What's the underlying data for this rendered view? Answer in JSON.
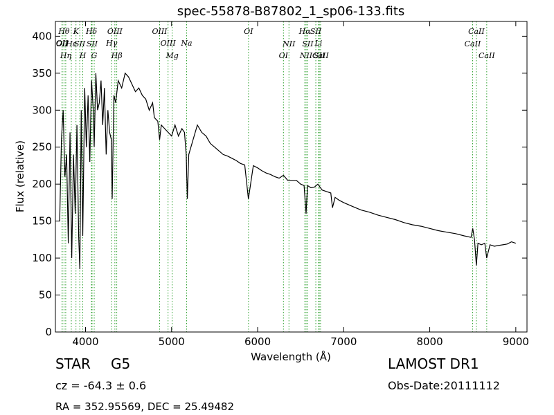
{
  "chart_data": {
    "type": "line",
    "title": "spec-55878-B87802_1_sp06-133.fits",
    "xlabel": "Wavelength (Å)",
    "ylabel": "Flux (relative)",
    "xlim": [
      3650,
      9130
    ],
    "ylim": [
      0,
      420
    ],
    "xticks": [
      4000,
      5000,
      6000,
      7000,
      8000,
      9000
    ],
    "yticks": [
      0,
      50,
      100,
      150,
      200,
      250,
      300,
      350,
      400
    ],
    "grid": false,
    "line_color": "#000000",
    "marker_color": "#2ca02c",
    "series": [
      {
        "x": [
          3700,
          3720,
          3740,
          3760,
          3780,
          3800,
          3820,
          3840,
          3860,
          3880,
          3900,
          3920,
          3934,
          3950,
          3968,
          3990,
          4010,
          4030,
          4050,
          4070,
          4090,
          4101,
          4120,
          4140,
          4160,
          4180,
          4200,
          4220,
          4240,
          4260,
          4280,
          4300,
          4310,
          4330,
          4350,
          4380,
          4420,
          4460,
          4500,
          4540,
          4580,
          4620,
          4660,
          4700,
          4740,
          4780,
          4800,
          4840,
          4861,
          4880,
          4920,
          4960,
          5000,
          5040,
          5080,
          5120,
          5150,
          5170,
          5183,
          5200,
          5250,
          5300,
          5350,
          5400,
          5450,
          5500,
          5550,
          5600,
          5650,
          5700,
          5750,
          5800,
          5850,
          5893,
          5950,
          6000,
          6050,
          6100,
          6150,
          6200,
          6250,
          6300,
          6350,
          6400,
          6450,
          6500,
          6540,
          6563,
          6580,
          6620,
          6660,
          6700,
          6750,
          6800,
          6850,
          6870,
          6900,
          6950,
          7000,
          7100,
          7200,
          7300,
          7400,
          7500,
          7600,
          7700,
          7800,
          7900,
          8000,
          8100,
          8200,
          8300,
          8400,
          8480,
          8500,
          8520,
          8542,
          8560,
          8600,
          8640,
          8662,
          8700,
          8750,
          8800,
          8850,
          8900,
          8950,
          9000
        ],
        "y": [
          150,
          260,
          300,
          210,
          240,
          120,
          270,
          100,
          240,
          160,
          280,
          130,
          85,
          300,
          130,
          330,
          250,
          320,
          230,
          340,
          300,
          250,
          350,
          300,
          310,
          340,
          280,
          330,
          240,
          300,
          270,
          260,
          180,
          320,
          310,
          340,
          330,
          350,
          345,
          335,
          325,
          330,
          320,
          315,
          300,
          310,
          290,
          285,
          260,
          280,
          275,
          270,
          265,
          280,
          265,
          275,
          270,
          240,
          180,
          240,
          260,
          280,
          270,
          265,
          255,
          250,
          245,
          240,
          238,
          235,
          232,
          228,
          226,
          180,
          225,
          222,
          218,
          215,
          213,
          210,
          208,
          212,
          205,
          205,
          205,
          200,
          198,
          160,
          198,
          195,
          196,
          200,
          192,
          190,
          188,
          168,
          182,
          178,
          175,
          170,
          165,
          162,
          158,
          155,
          152,
          148,
          145,
          143,
          140,
          137,
          135,
          133,
          130,
          128,
          140,
          125,
          90,
          120,
          118,
          120,
          100,
          118,
          116,
          117,
          118,
          119,
          122,
          120
        ]
      }
    ],
    "lines": [
      {
        "label": "OII",
        "x": 3727,
        "row": 2
      },
      {
        "label": "OII",
        "x": 3729,
        "row": 1
      },
      {
        "label": "Hθ",
        "x": 3750,
        "row": 0
      },
      {
        "label": "Hη",
        "x": 3770,
        "row": 3
      },
      {
        "label": "Hε",
        "x": 3835,
        "row": 1
      },
      {
        "label": "K",
        "x": 3889,
        "row": 0
      },
      {
        "label": "SII",
        "x": 3933,
        "row": 1
      },
      {
        "label": "H",
        "x": 3968,
        "row": 3
      },
      {
        "label": "Hδ",
        "x": 4069,
        "row": 0
      },
      {
        "label": "SII",
        "x": 4076,
        "row": 1
      },
      {
        "label": "G",
        "x": 4101,
        "row": 4
      },
      {
        "label": "Hγ",
        "x": 4304,
        "row": 2
      },
      {
        "label": "OIII",
        "x": 4341,
        "row": 0
      },
      {
        "label": "Hβ",
        "x": 4363,
        "row": 3
      },
      {
        "label": "OIII",
        "x": 4861,
        "row": 0
      },
      {
        "label": "OIII",
        "x": 4959,
        "row": 2
      },
      {
        "label": "Mg",
        "x": 5007,
        "row": 3
      },
      {
        "label": "Na",
        "x": 5175,
        "row": 2
      },
      {
        "label": "OI",
        "x": 5894,
        "row": 0
      },
      {
        "label": "OI",
        "x": 6300,
        "row": 3
      },
      {
        "label": "NII",
        "x": 6364,
        "row": 1
      },
      {
        "label": "Hα",
        "x": 6548,
        "row": 0
      },
      {
        "label": "NII",
        "x": 6563,
        "row": 3
      },
      {
        "label": "SII",
        "x": 6583,
        "row": 1
      },
      {
        "label": "SII",
        "x": 6676,
        "row": 0
      },
      {
        "label": "Li",
        "x": 6707,
        "row": 2
      },
      {
        "label": "SII",
        "x": 6717,
        "row": 3
      },
      {
        "label": "CaII",
        "x": 6731,
        "row": 3
      },
      {
        "label": "CaII",
        "x": 8498,
        "row": 1
      },
      {
        "label": "CaII",
        "x": 8542,
        "row": 0
      },
      {
        "label": "CaII",
        "x": 8662,
        "row": 3
      }
    ]
  },
  "info": {
    "object_class": "STAR",
    "object_subclass": "G5",
    "survey": "LAMOST DR1",
    "redshift": "cz = -64.3 ± 0.6",
    "obs_date": "Obs-Date:20111112",
    "coords": "RA = 352.95569, DEC = 25.49482"
  }
}
